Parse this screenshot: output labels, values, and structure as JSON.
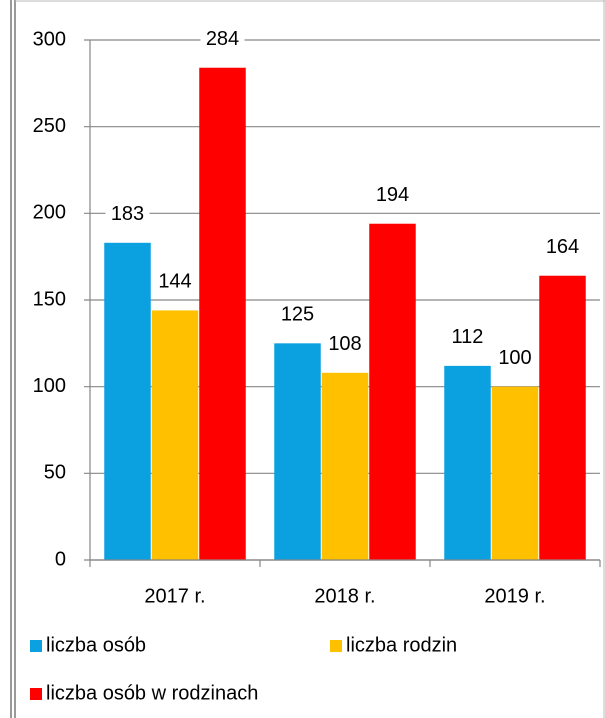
{
  "chart_data": {
    "type": "bar",
    "categories": [
      "2017 r.",
      "2018 r.",
      "2019 r."
    ],
    "series": [
      {
        "name": "liczba osób",
        "color": "#0ba0df",
        "values": [
          183,
          125,
          112
        ]
      },
      {
        "name": "liczba rodzin",
        "color": "#ffc000",
        "values": [
          144,
          108,
          100
        ]
      },
      {
        "name": "liczba osób w rodzinach",
        "color": "#ff0000",
        "values": [
          284,
          194,
          164
        ]
      }
    ],
    "ylim": [
      0,
      300
    ],
    "yticks": [
      0,
      50,
      100,
      150,
      200,
      250,
      300
    ],
    "grid": true,
    "legend": "bottom"
  }
}
